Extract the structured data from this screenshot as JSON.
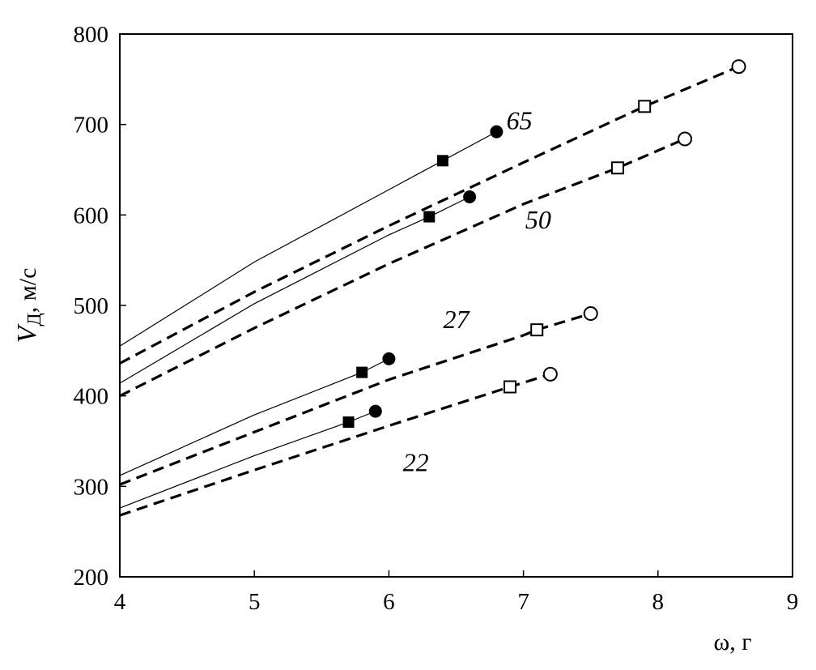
{
  "chart_data": {
    "type": "line",
    "title": "",
    "xlabel": "ω, г",
    "ylabel": {
      "symbol": "V",
      "subscript": "Д",
      "unit": ", м/с"
    },
    "xlim": [
      4,
      9
    ],
    "ylim": [
      200,
      800
    ],
    "xticks": [
      4,
      5,
      6,
      7,
      8,
      9
    ],
    "yticks": [
      200,
      300,
      400,
      500,
      600,
      700,
      800
    ],
    "grid": false,
    "legend": "none",
    "groups": [
      {
        "label": "65",
        "solid": {
          "x": [
            4,
            5,
            6,
            6.4,
            6.8
          ],
          "y": [
            455,
            548,
            628,
            660,
            692
          ]
        },
        "dashed": {
          "x": [
            4,
            5,
            6,
            7,
            7.9,
            8.6
          ],
          "y": [
            436,
            515,
            588,
            658,
            720,
            764
          ]
        },
        "solid_markers": [
          {
            "x": 6.4,
            "y": 660,
            "shape": "filled-square"
          },
          {
            "x": 6.8,
            "y": 692,
            "shape": "filled-circle"
          }
        ],
        "dashed_markers": [
          {
            "x": 7.9,
            "y": 720,
            "shape": "open-square"
          },
          {
            "x": 8.6,
            "y": 764,
            "shape": "open-circle"
          }
        ]
      },
      {
        "label": "50",
        "solid": {
          "x": [
            4,
            5,
            6,
            6.3,
            6.6
          ],
          "y": [
            414,
            502,
            578,
            598,
            620
          ]
        },
        "dashed": {
          "x": [
            4,
            5,
            6,
            7,
            7.7,
            8.2
          ],
          "y": [
            400,
            475,
            546,
            612,
            652,
            684
          ]
        },
        "solid_markers": [
          {
            "x": 6.3,
            "y": 598,
            "shape": "filled-square"
          },
          {
            "x": 6.6,
            "y": 620,
            "shape": "filled-circle"
          }
        ],
        "dashed_markers": [
          {
            "x": 7.7,
            "y": 652,
            "shape": "open-square"
          },
          {
            "x": 8.2,
            "y": 684,
            "shape": "open-circle"
          }
        ]
      },
      {
        "label": "27",
        "solid": {
          "x": [
            4,
            5,
            5.8,
            6
          ],
          "y": [
            312,
            379,
            426,
            441
          ]
        },
        "dashed": {
          "x": [
            4,
            5,
            6,
            7,
            7.1,
            7.5
          ],
          "y": [
            302,
            360,
            418,
            467,
            473,
            491
          ]
        },
        "solid_markers": [
          {
            "x": 5.8,
            "y": 426,
            "shape": "filled-square"
          },
          {
            "x": 6,
            "y": 441,
            "shape": "filled-circle"
          }
        ],
        "dashed_markers": [
          {
            "x": 7.1,
            "y": 473,
            "shape": "open-square"
          },
          {
            "x": 7.5,
            "y": 491,
            "shape": "open-circle"
          }
        ]
      },
      {
        "label": "22",
        "solid": {
          "x": [
            4,
            5,
            5.7,
            5.9
          ],
          "y": [
            276,
            334,
            371,
            383
          ]
        },
        "dashed": {
          "x": [
            4,
            5,
            6,
            6.9,
            7.2
          ],
          "y": [
            268,
            318,
            367,
            410,
            424
          ]
        },
        "solid_markers": [
          {
            "x": 5.7,
            "y": 371,
            "shape": "filled-square"
          },
          {
            "x": 5.9,
            "y": 383,
            "shape": "filled-circle"
          }
        ],
        "dashed_markers": [
          {
            "x": 6.9,
            "y": 410,
            "shape": "open-square"
          },
          {
            "x": 7.2,
            "y": 424,
            "shape": "open-circle"
          }
        ]
      }
    ],
    "curve_label_anchors": [
      {
        "label": "65",
        "x": 6.97,
        "y": 695
      },
      {
        "label": "50",
        "x": 7.11,
        "y": 585
      },
      {
        "label": "27",
        "x": 6.5,
        "y": 475
      },
      {
        "label": "22",
        "x": 6.2,
        "y": 317
      }
    ]
  }
}
